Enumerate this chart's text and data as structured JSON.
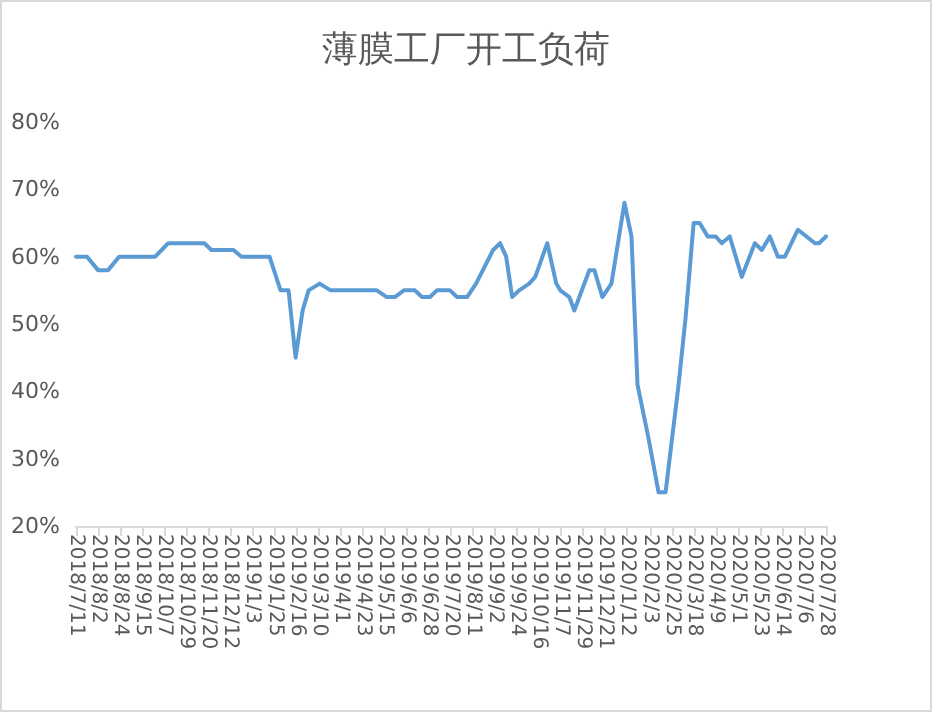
{
  "chart_data": {
    "type": "line",
    "title": "薄膜工厂开工负荷",
    "color": "#5b9bd5",
    "grid": false,
    "marker": "none",
    "line_style": "solid",
    "x": [
      "2018-07-11",
      "2018-07-22",
      "2018-08-02",
      "2018-08-12",
      "2018-08-23",
      "2018-09-28",
      "2018-10-11",
      "2018-11-16",
      "2018-11-23",
      "2018-12-15",
      "2018-12-23",
      "2019-01-20",
      "2019-01-31",
      "2019-02-08",
      "2019-02-15",
      "2019-02-22",
      "2019-02-28",
      "2019-03-11",
      "2019-03-22",
      "2019-05-07",
      "2019-05-17",
      "2019-05-25",
      "2019-06-03",
      "2019-06-14",
      "2019-06-21",
      "2019-06-29",
      "2019-07-06",
      "2019-07-19",
      "2019-07-26",
      "2019-08-05",
      "2019-08-14",
      "2019-08-31",
      "2019-09-07",
      "2019-09-13",
      "2019-09-19",
      "2019-09-26",
      "2019-10-06",
      "2019-10-12",
      "2019-10-24",
      "2019-11-02",
      "2019-11-06",
      "2019-11-15",
      "2019-11-20",
      "2019-12-05",
      "2019-12-10",
      "2019-12-18",
      "2019-12-27",
      "2020-01-09",
      "2020-01-16",
      "2020-01-22",
      "2020-02-02",
      "2020-02-12",
      "2020-02-19",
      "2020-03-03",
      "2020-03-10",
      "2020-03-18",
      "2020-03-24",
      "2020-04-01",
      "2020-04-09",
      "2020-04-15",
      "2020-04-23",
      "2020-05-05",
      "2020-05-18",
      "2020-05-25",
      "2020-06-02",
      "2020-06-10",
      "2020-06-17",
      "2020-06-30",
      "2020-07-17",
      "2020-07-21",
      "2020-07-28"
    ],
    "values": [
      60,
      60,
      58,
      58,
      60,
      60,
      62,
      62,
      61,
      61,
      60,
      60,
      55,
      55,
      45,
      52,
      55,
      56,
      55,
      55,
      54,
      54,
      55,
      55,
      54,
      54,
      55,
      55,
      54,
      54,
      56,
      61,
      62,
      60,
      54,
      55,
      56,
      57,
      62,
      56,
      55,
      54,
      52,
      58,
      58,
      54,
      56,
      68,
      63,
      41,
      33,
      25,
      25,
      41,
      51,
      65,
      65,
      63,
      63,
      62,
      63,
      57,
      62,
      61,
      63,
      60,
      60,
      64,
      62,
      62,
      63
    ],
    "xlim": [
      "2018-07-11",
      "2020-07-28"
    ],
    "xticks": [
      {
        "value": "2018-07-11",
        "label": "2018/7/11"
      },
      {
        "value": "2018-08-02",
        "label": "2018/8/2"
      },
      {
        "value": "2018-08-24",
        "label": "2018/8/24"
      },
      {
        "value": "2018-09-15",
        "label": "2018/9/15"
      },
      {
        "value": "2018-10-07",
        "label": "2018/10/7"
      },
      {
        "value": "2018-10-29",
        "label": "2018/10/29"
      },
      {
        "value": "2018-11-20",
        "label": "2018/11/20"
      },
      {
        "value": "2018-12-12",
        "label": "2018/12/12"
      },
      {
        "value": "2019-01-03",
        "label": "2019/1/3"
      },
      {
        "value": "2019-01-25",
        "label": "2019/1/25"
      },
      {
        "value": "2019-02-16",
        "label": "2019/2/16"
      },
      {
        "value": "2019-03-10",
        "label": "2019/3/10"
      },
      {
        "value": "2019-04-01",
        "label": "2019/4/1"
      },
      {
        "value": "2019-04-23",
        "label": "2019/4/23"
      },
      {
        "value": "2019-05-15",
        "label": "2019/5/15"
      },
      {
        "value": "2019-06-06",
        "label": "2019/6/6"
      },
      {
        "value": "2019-06-28",
        "label": "2019/6/28"
      },
      {
        "value": "2019-07-20",
        "label": "2019/7/20"
      },
      {
        "value": "2019-08-11",
        "label": "2019/8/11"
      },
      {
        "value": "2019-09-02",
        "label": "2019/9/2"
      },
      {
        "value": "2019-09-24",
        "label": "2019/9/24"
      },
      {
        "value": "2019-10-16",
        "label": "2019/10/16"
      },
      {
        "value": "2019-11-07",
        "label": "2019/11/7"
      },
      {
        "value": "2019-11-29",
        "label": "2019/11/29"
      },
      {
        "value": "2019-12-21",
        "label": "2019/12/21"
      },
      {
        "value": "2020-01-12",
        "label": "2020/1/12"
      },
      {
        "value": "2020-02-03",
        "label": "2020/2/3"
      },
      {
        "value": "2020-02-25",
        "label": "2020/2/25"
      },
      {
        "value": "2020-03-18",
        "label": "2020/3/18"
      },
      {
        "value": "2020-04-09",
        "label": "2020/4/9"
      },
      {
        "value": "2020-05-01",
        "label": "2020/5/1"
      },
      {
        "value": "2020-05-23",
        "label": "2020/5/23"
      },
      {
        "value": "2020-06-14",
        "label": "2020/6/14"
      },
      {
        "value": "2020-07-06",
        "label": "2020/7/6"
      },
      {
        "value": "2020-07-28",
        "label": "2020/7/28"
      }
    ],
    "ylim": [
      20,
      80
    ],
    "yticks": [
      {
        "value": 20,
        "label": "20%"
      },
      {
        "value": 30,
        "label": "30%"
      },
      {
        "value": 40,
        "label": "40%"
      },
      {
        "value": 50,
        "label": "50%"
      },
      {
        "value": 60,
        "label": "60%"
      },
      {
        "value": 70,
        "label": "70%"
      },
      {
        "value": 80,
        "label": "80%"
      }
    ]
  }
}
